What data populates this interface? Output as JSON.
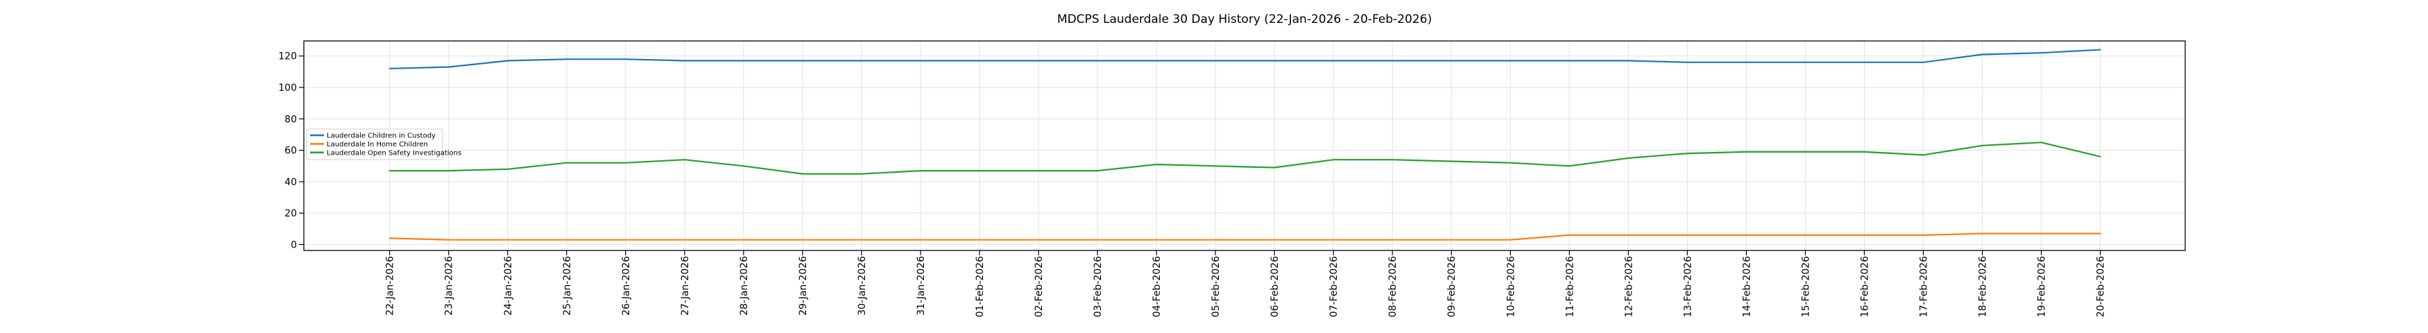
{
  "figure": {
    "background_color": "#ffffff",
    "grid_color": "#e4e4e4",
    "spine_color": "#000000",
    "legend": {
      "border_color": "#cccccc",
      "background_color": "#ffffff"
    }
  },
  "chart_data": {
    "type": "line",
    "title": "MDCPS Lauderdale 30 Day History (22-Jan-2026 - 20-Feb-2026)",
    "xlabel": "",
    "ylabel": "",
    "grid": true,
    "legend_position": "center left",
    "ylim": [
      -3.75,
      129.6
    ],
    "yticks": [
      0,
      20,
      40,
      60,
      80,
      100,
      120
    ],
    "categories": [
      "22-Jan-2026",
      "23-Jan-2026",
      "24-Jan-2026",
      "25-Jan-2026",
      "26-Jan-2026",
      "27-Jan-2026",
      "28-Jan-2026",
      "29-Jan-2026",
      "30-Jan-2026",
      "31-Jan-2026",
      "01-Feb-2026",
      "02-Feb-2026",
      "03-Feb-2026",
      "04-Feb-2026",
      "05-Feb-2026",
      "06-Feb-2026",
      "07-Feb-2026",
      "08-Feb-2026",
      "09-Feb-2026",
      "10-Feb-2026",
      "11-Feb-2026",
      "12-Feb-2026",
      "13-Feb-2026",
      "14-Feb-2026",
      "15-Feb-2026",
      "16-Feb-2026",
      "17-Feb-2026",
      "18-Feb-2026",
      "19-Feb-2026",
      "20-Feb-2026"
    ],
    "series": [
      {
        "name": "Lauderdale Children in Custody",
        "color": "#1f77b4",
        "values": [
          112,
          113,
          117,
          118,
          118,
          117,
          117,
          117,
          117,
          117,
          117,
          117,
          117,
          117,
          117,
          117,
          117,
          117,
          117,
          117,
          117,
          117,
          116,
          116,
          116,
          116,
          116,
          121,
          122,
          124
        ]
      },
      {
        "name": "Lauderdale In Home Children",
        "color": "#ff7f0e",
        "values": [
          4,
          3,
          3,
          3,
          3,
          3,
          3,
          3,
          3,
          3,
          3,
          3,
          3,
          3,
          3,
          3,
          3,
          3,
          3,
          3,
          6,
          6,
          6,
          6,
          6,
          6,
          6,
          7,
          7,
          7
        ]
      },
      {
        "name": "Lauderdale Open Safety Investigations",
        "color": "#2ca02c",
        "values": [
          47,
          47,
          48,
          52,
          52,
          54,
          50,
          45,
          45,
          47,
          47,
          47,
          47,
          51,
          50,
          49,
          54,
          54,
          53,
          52,
          50,
          55,
          58,
          59,
          59,
          59,
          57,
          63,
          65,
          56
        ]
      }
    ]
  }
}
